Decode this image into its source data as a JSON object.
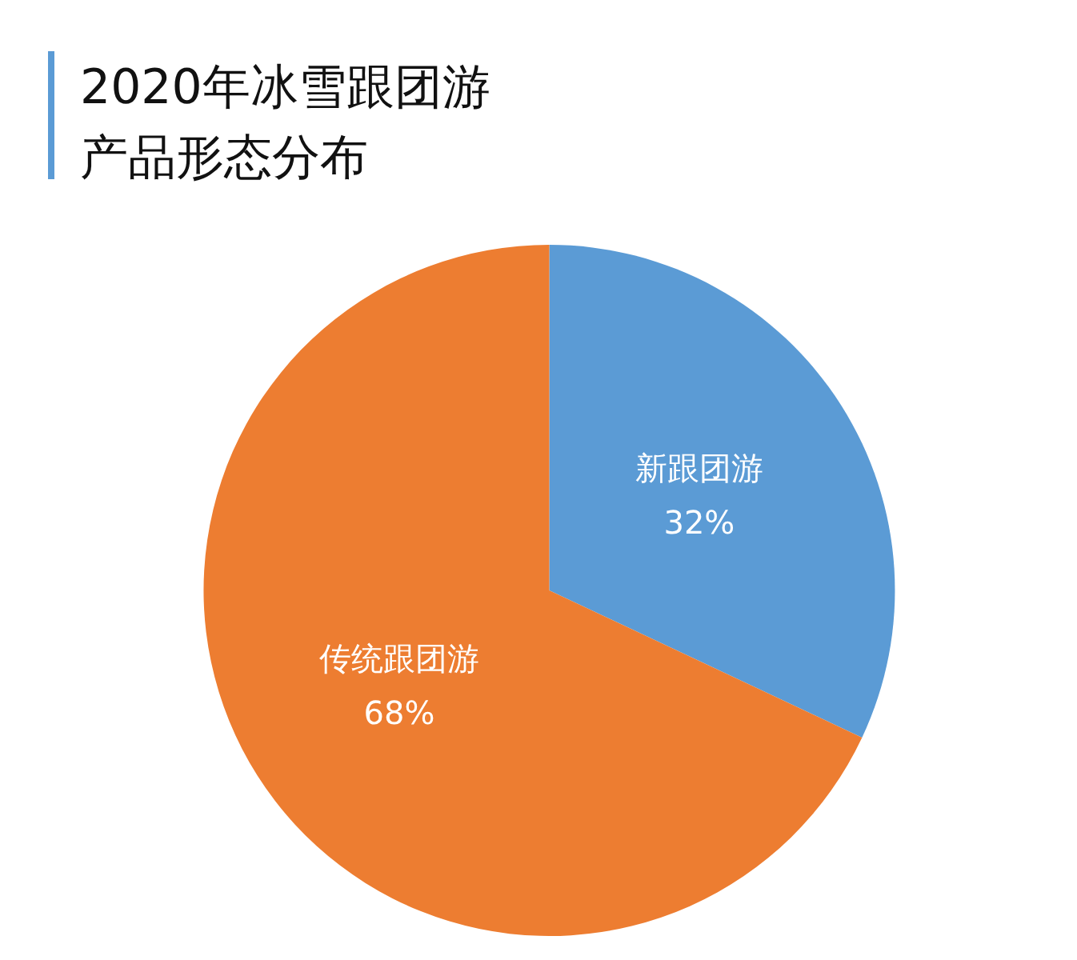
{
  "chart_data": {
    "type": "pie",
    "title": "2020年冰雪跟团游产品形态分布",
    "categories": [
      "新跟团游",
      "传统跟团游"
    ],
    "values": [
      32,
      68
    ],
    "colors": [
      "#5b9bd5",
      "#ed7d31"
    ],
    "value_labels": [
      "32%",
      "68%"
    ],
    "legend": false
  }
}
